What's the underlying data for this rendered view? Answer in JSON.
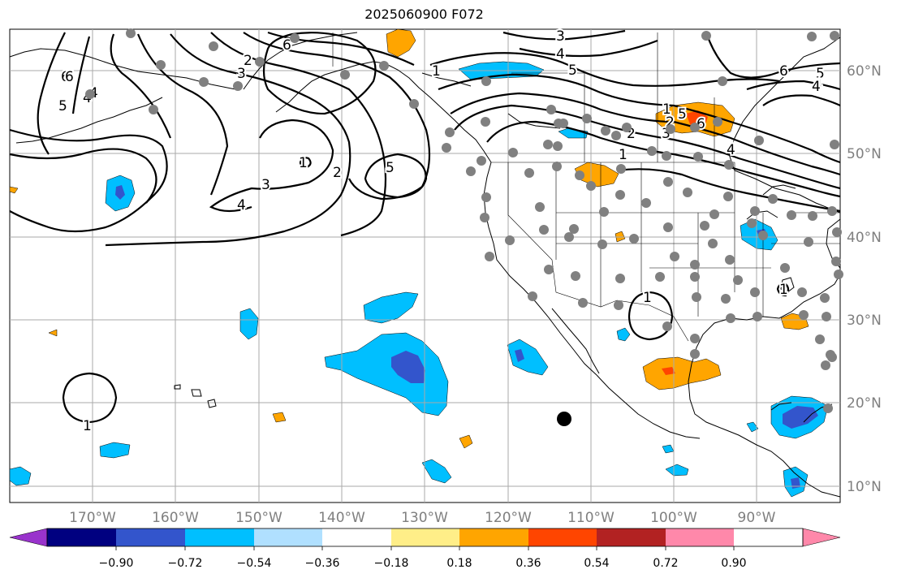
{
  "title": "2025060900 F072",
  "lon_labels": [
    "170°W",
    "160°W",
    "150°W",
    "140°W",
    "130°W",
    "120°W",
    "110°W",
    "100°W",
    "90°W"
  ],
  "lat_labels": [
    "60°N",
    "50°N",
    "40°N",
    "30°N",
    "20°N",
    "10°N"
  ],
  "colorbar": {
    "tick_labels": [
      "−0.90",
      "−0.72",
      "−0.54",
      "−0.36",
      "−0.18",
      "0.18",
      "0.36",
      "0.54",
      "0.72",
      "0.90"
    ],
    "colors": [
      "#9933cc",
      "#000080",
      "#3355cc",
      "#00bfff",
      "#b0e0ff",
      "#ffffff",
      "#ffee88",
      "#ffa500",
      "#ff4500",
      "#b22222",
      "#ff88aa"
    ]
  },
  "contour_labels": [
    "6",
    "5",
    "4",
    "3",
    "2",
    "1",
    "6",
    "5",
    "4",
    "3",
    "2",
    "1",
    "5",
    "4",
    "3",
    "2",
    "1",
    "6",
    "5",
    "4",
    "3",
    "2",
    "1",
    "6",
    "5",
    "4",
    "1",
    "1",
    "1",
    "6",
    "4",
    "4"
  ],
  "colors": {
    "contour": "#000000",
    "station_dot": "#808080",
    "grid": "#aaaaaa",
    "coast": "#000000",
    "orange": "#ffa500",
    "lightorange": "#ffcc55",
    "redorange": "#ff4500",
    "blue": "#00bfff",
    "midblue": "#3355cc"
  }
}
